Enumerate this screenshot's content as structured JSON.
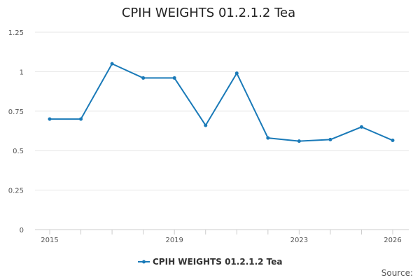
{
  "chart_data": {
    "type": "line",
    "title": "CPIH WEIGHTS 01.2.1.2 Tea",
    "xlabel": "",
    "ylabel": "",
    "x": [
      2015,
      2016,
      2017,
      2018,
      2019,
      2020,
      2021,
      2022,
      2023,
      2024,
      2025,
      2026
    ],
    "xticks": [
      "2015",
      "2019",
      "2023",
      "2026"
    ],
    "yticks": [
      "0",
      "0.25",
      "0.5",
      "0.75",
      "1",
      "1.25"
    ],
    "ylim": [
      0,
      1.25
    ],
    "grid": true,
    "legend_position": "bottom",
    "series": [
      {
        "name": "CPIH WEIGHTS 01.2.1.2 Tea",
        "color": "#1a7ab8",
        "values": [
          0.7,
          0.7,
          1.05,
          0.96,
          0.96,
          0.66,
          0.99,
          0.58,
          0.56,
          0.57,
          0.65,
          0.565
        ]
      }
    ],
    "source_label": "Source:"
  }
}
